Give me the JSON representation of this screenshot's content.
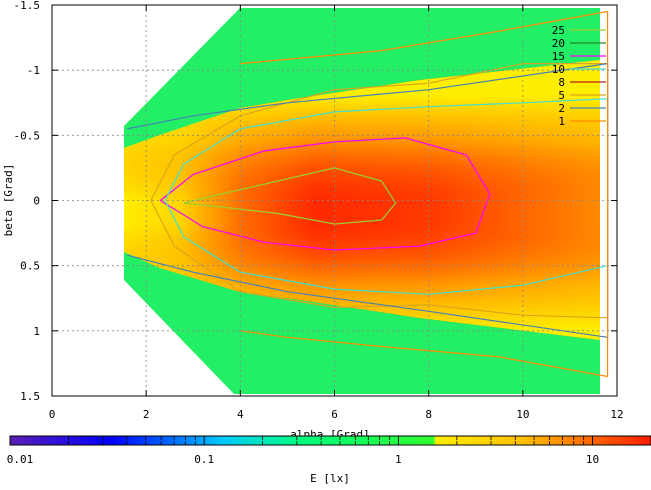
{
  "chart_data": {
    "type": "heatmap",
    "xlabel": "alpha [Grad]",
    "ylabel": "beta [Grad]",
    "xlim": [
      0,
      12
    ],
    "ylim": [
      -1.5,
      1.5
    ],
    "y_axis_inverted": true,
    "x_ticks": [
      "0",
      "2",
      "4",
      "6",
      "8",
      "10",
      "12"
    ],
    "y_ticks": [
      "-1.5",
      "-1",
      "-0.5",
      "0",
      "0.5",
      "1",
      "1.5"
    ],
    "grid": true,
    "colorbar": {
      "label": "E [lx]",
      "scale": "log",
      "range": [
        0.01,
        20
      ],
      "ticks": [
        "0.01",
        "0.1",
        "1",
        "10"
      ]
    },
    "contour_legend": {
      "placement": "top-right",
      "levels": [
        {
          "label": "25",
          "color": "#9acd32"
        },
        {
          "label": "20",
          "color": "#228b22"
        },
        {
          "label": "15",
          "color": "#ff00ff"
        },
        {
          "label": "10",
          "color": "#40e0d0"
        },
        {
          "label": "8",
          "color": "#b22222"
        },
        {
          "label": "5",
          "color": "#daa520"
        },
        {
          "label": "2",
          "color": "#4682b4"
        },
        {
          "label": "1",
          "color": "#ff8c00"
        }
      ]
    },
    "contours": [
      {
        "level": 25,
        "points": [
          [
            2.8,
            0.02
          ],
          [
            3.6,
            -0.05
          ],
          [
            4.8,
            -0.15
          ],
          [
            6,
            -0.25
          ],
          [
            7,
            -0.15
          ],
          [
            7.3,
            0.02
          ],
          [
            7,
            0.15
          ],
          [
            6,
            0.18
          ],
          [
            4.8,
            0.1
          ],
          [
            3.6,
            0.05
          ],
          [
            2.8,
            0.02
          ]
        ]
      },
      {
        "level": 15,
        "points": [
          [
            2.3,
            0.0
          ],
          [
            3,
            -0.2
          ],
          [
            4.5,
            -0.38
          ],
          [
            6,
            -0.45
          ],
          [
            7.5,
            -0.48
          ],
          [
            8.8,
            -0.35
          ],
          [
            9.3,
            -0.05
          ],
          [
            9,
            0.25
          ],
          [
            7.8,
            0.35
          ],
          [
            6,
            0.38
          ],
          [
            4.5,
            0.32
          ],
          [
            3.2,
            0.2
          ],
          [
            2.3,
            0.0
          ]
        ]
      },
      {
        "level": 10,
        "points": [
          [
            2.4,
            0.0
          ],
          [
            2.8,
            -0.28
          ],
          [
            4,
            -0.55
          ],
          [
            6,
            -0.68
          ],
          [
            8,
            -0.72
          ],
          [
            10,
            -0.75
          ],
          [
            11.8,
            -0.78
          ],
          [
            11.8,
            0.5
          ],
          [
            10,
            0.65
          ],
          [
            8,
            0.72
          ],
          [
            6,
            0.68
          ],
          [
            4,
            0.55
          ],
          [
            2.8,
            0.28
          ],
          [
            2.4,
            0.0
          ]
        ]
      },
      {
        "level": 5,
        "points": [
          [
            2.1,
            0.0
          ],
          [
            2.6,
            -0.35
          ],
          [
            4,
            -0.65
          ],
          [
            6,
            -0.85
          ],
          [
            8,
            -0.9
          ],
          [
            10,
            -1.05
          ],
          [
            11.8,
            -1.05
          ],
          [
            11.8,
            0.9
          ],
          [
            10,
            0.88
          ],
          [
            8,
            0.8
          ],
          [
            6,
            0.82
          ],
          [
            4,
            0.7
          ],
          [
            2.6,
            0.35
          ],
          [
            2.1,
            0.0
          ]
        ]
      },
      {
        "level": 2,
        "points": [
          [
            1.6,
            -0.55
          ],
          [
            3,
            -0.65
          ],
          [
            5,
            -0.75
          ],
          [
            8,
            -0.85
          ],
          [
            11.8,
            -1.05
          ],
          [
            11.8,
            1.05
          ],
          [
            8,
            0.85
          ],
          [
            5,
            0.7
          ],
          [
            3,
            0.55
          ],
          [
            1.6,
            0.42
          ]
        ]
      },
      {
        "level": 1,
        "points": [
          [
            4,
            -1.05
          ],
          [
            7,
            -1.15
          ],
          [
            9.5,
            -1.3
          ],
          [
            11.8,
            -1.45
          ],
          [
            11.8,
            1.35
          ],
          [
            9.5,
            1.2
          ],
          [
            7,
            1.12
          ],
          [
            5,
            1.05
          ],
          [
            4,
            1.0
          ]
        ]
      }
    ]
  }
}
